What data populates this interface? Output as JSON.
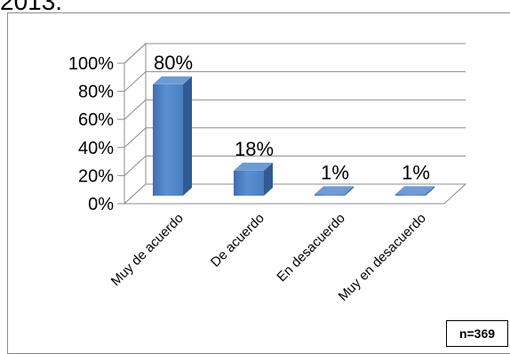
{
  "header_fragment": "2013:",
  "sample_note": "n=369",
  "chart_data": {
    "type": "bar",
    "categories": [
      "Muy de acuerdo",
      "De acuerdo",
      "En desacuerdo",
      "Muy en desacuerdo"
    ],
    "values": [
      80,
      18,
      1,
      1
    ],
    "data_labels": [
      "80%",
      "18%",
      "1%",
      "1%"
    ],
    "yticks": [
      "0%",
      "20%",
      "40%",
      "60%",
      "80%",
      "100%"
    ],
    "ylim": [
      0,
      100
    ],
    "title": "",
    "xlabel": "",
    "ylabel": "",
    "grid": true,
    "three_d": true,
    "bar_color": "#4f81bd"
  }
}
